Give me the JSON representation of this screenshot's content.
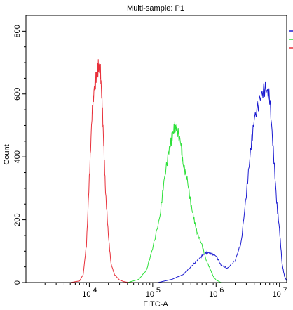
{
  "chart_data": {
    "type": "line",
    "title": "Multi-sample: P1",
    "xlabel": "FITC-A",
    "ylabel": "Count",
    "x_scale": "log",
    "xlim": [
      1000,
      13000000
    ],
    "ylim": [
      0,
      850
    ],
    "x_ticks": [
      {
        "value": 10000,
        "base": "10",
        "exp": "4"
      },
      {
        "value": 100000,
        "base": "10",
        "exp": "5"
      },
      {
        "value": 1000000,
        "base": "10",
        "exp": "6"
      },
      {
        "value": 10000000,
        "base": "10",
        "exp": "7"
      }
    ],
    "y_ticks": [
      0,
      200,
      400,
      600,
      800
    ],
    "grid": false,
    "legend": "none",
    "series": [
      {
        "color": "#e8303a",
        "x": [
          5000,
          7000,
          8000,
          9000,
          10000,
          11000,
          12000,
          13000,
          14000,
          15000,
          16000,
          17000,
          18000,
          20000,
          22000,
          25000,
          30000,
          35000,
          40000,
          50000
        ],
        "y": [
          0,
          5,
          25,
          120,
          330,
          530,
          620,
          660,
          690,
          670,
          560,
          420,
          290,
          150,
          60,
          25,
          8,
          3,
          1,
          0
        ]
      },
      {
        "color": "#2ee03a",
        "x": [
          40000,
          60000,
          80000,
          100000,
          130000,
          150000,
          180000,
          200000,
          220000,
          240000,
          280000,
          300000,
          350000,
          400000,
          450000,
          500000,
          600000,
          700000,
          800000,
          900000,
          1000000,
          1200000
        ],
        "y": [
          0,
          10,
          40,
          110,
          210,
          320,
          420,
          460,
          495,
          490,
          440,
          380,
          330,
          250,
          200,
          160,
          120,
          70,
          45,
          20,
          8,
          0
        ]
      },
      {
        "color": "#1a1ad0",
        "x": [
          120000,
          200000,
          300000,
          400000,
          500000,
          600000,
          700000,
          800000,
          1000000,
          1200000,
          1500000,
          2000000,
          2500000,
          3000000,
          3500000,
          4000000,
          5000000,
          6000000,
          7000000,
          8000000,
          9000000,
          10000000,
          11000000,
          12000000,
          13000000
        ],
        "y": [
          0,
          10,
          25,
          50,
          70,
          85,
          95,
          95,
          85,
          55,
          45,
          70,
          130,
          280,
          420,
          520,
          590,
          620,
          590,
          420,
          260,
          170,
          60,
          20,
          5
        ]
      }
    ],
    "side_marks": [
      {
        "color": "#1a1ad0"
      },
      {
        "color": "#2ee03a"
      },
      {
        "color": "#e8303a"
      }
    ]
  }
}
